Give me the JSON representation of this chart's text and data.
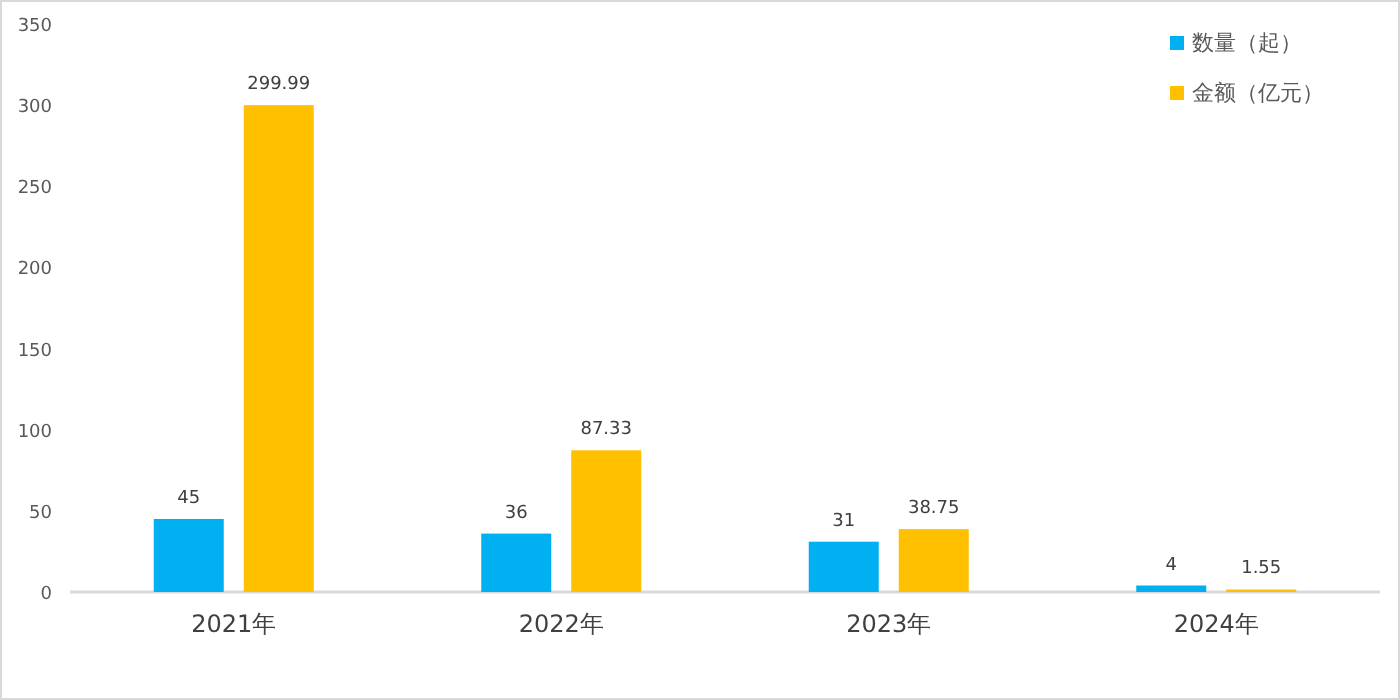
{
  "chart_data": {
    "type": "bar",
    "categories": [
      "2021年",
      "2022年",
      "2023年",
      "2024年"
    ],
    "series": [
      {
        "name": "数量（起）",
        "color": "#00b0f0",
        "values": [
          45,
          36,
          31,
          4
        ]
      },
      {
        "name": "金额（亿元）",
        "color": "#ffc000",
        "values": [
          299.99,
          87.33,
          38.75,
          1.55
        ]
      }
    ],
    "ylim": [
      0,
      350
    ],
    "yticks": [
      0,
      50,
      100,
      150,
      200,
      250,
      300,
      350
    ],
    "grid": false,
    "legend": "top right",
    "data_labels": true
  }
}
